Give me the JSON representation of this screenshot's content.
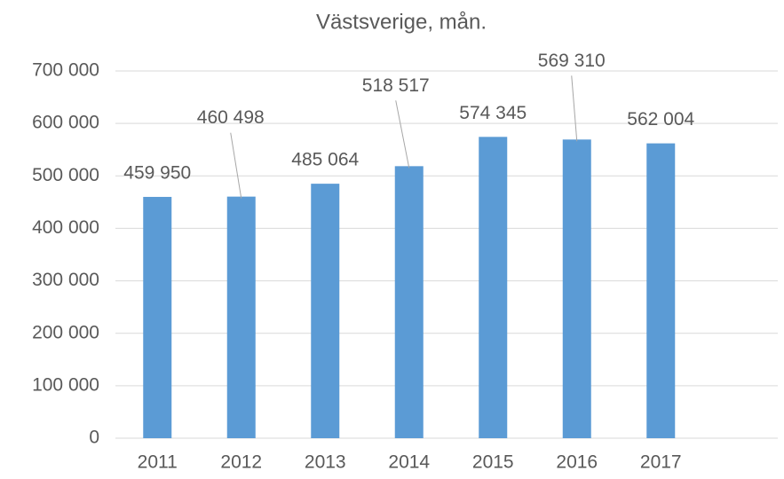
{
  "chart_data": {
    "type": "bar",
    "title": "Västsverige, mån.",
    "categories": [
      "2011",
      "2012",
      "2013",
      "2014",
      "2015",
      "2016",
      "2017",
      null
    ],
    "values": [
      459950,
      460498,
      485064,
      518517,
      574345,
      569310,
      562004,
      null
    ],
    "value_labels": [
      "459 950",
      "460 498",
      "485 064",
      "518 517",
      "574 345",
      "569 310",
      "562 004",
      null
    ],
    "color": "#5b9bd5",
    "ylim": [
      0,
      700000
    ],
    "yticks": [
      0,
      {
        "value": 100000,
        "label": "100 000"
      },
      {
        "value": 200000,
        "label": "200 000"
      },
      {
        "value": 300000,
        "label": "300 000"
      },
      {
        "value": 400000,
        "label": "400 000"
      },
      {
        "value": 500000,
        "label": "500 000"
      },
      {
        "value": 600000,
        "label": "600 000"
      },
      {
        "value": 700000,
        "label": "700 000"
      }
    ],
    "grid": true
  }
}
